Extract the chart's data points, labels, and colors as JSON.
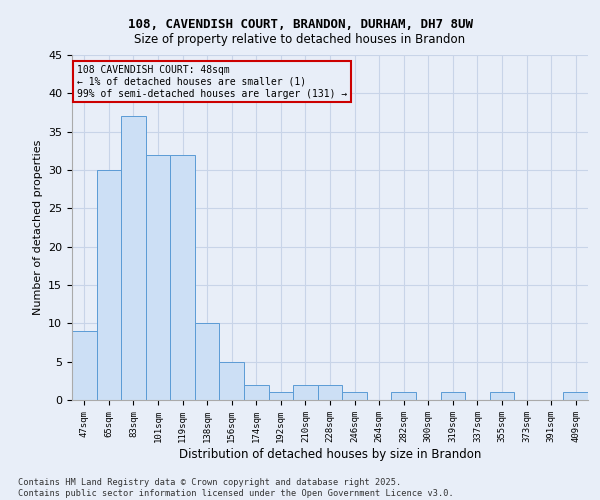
{
  "title1": "108, CAVENDISH COURT, BRANDON, DURHAM, DH7 8UW",
  "title2": "Size of property relative to detached houses in Brandon",
  "xlabel": "Distribution of detached houses by size in Brandon",
  "ylabel": "Number of detached properties",
  "categories": [
    "47sqm",
    "65sqm",
    "83sqm",
    "101sqm",
    "119sqm",
    "138sqm",
    "156sqm",
    "174sqm",
    "192sqm",
    "210sqm",
    "228sqm",
    "246sqm",
    "264sqm",
    "282sqm",
    "300sqm",
    "319sqm",
    "337sqm",
    "355sqm",
    "373sqm",
    "391sqm",
    "409sqm"
  ],
  "values": [
    9,
    30,
    37,
    32,
    32,
    10,
    5,
    2,
    1,
    2,
    2,
    1,
    0,
    1,
    0,
    1,
    0,
    1,
    0,
    0,
    1
  ],
  "bar_color": "#ccdff5",
  "bar_edge_color": "#5b9bd5",
  "ylim": [
    0,
    45
  ],
  "yticks": [
    0,
    5,
    10,
    15,
    20,
    25,
    30,
    35,
    40,
    45
  ],
  "annotation_line1": "108 CAVENDISH COURT: 48sqm",
  "annotation_line2": "← 1% of detached houses are smaller (1)",
  "annotation_line3": "99% of semi-detached houses are larger (131) →",
  "annotation_box_color": "#cc0000",
  "background_color": "#e8eef8",
  "grid_color": "#c8d4e8",
  "footer_text": "Contains HM Land Registry data © Crown copyright and database right 2025.\nContains public sector information licensed under the Open Government Licence v3.0."
}
